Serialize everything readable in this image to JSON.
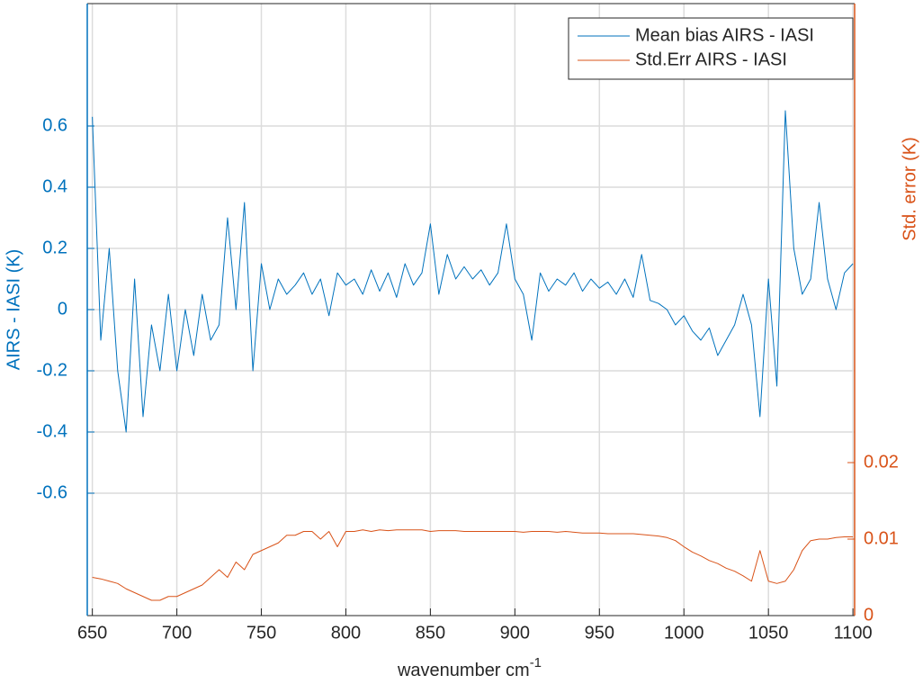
{
  "chart_data": {
    "type": "line",
    "xlabel": {
      "text": "wavenumber cm",
      "superscript": "-1"
    },
    "ylabel": "AIRS - IASI (K)",
    "y2label": "Std. error (K)",
    "x": [
      650,
      655,
      660,
      665,
      670,
      675,
      680,
      685,
      690,
      695,
      700,
      705,
      710,
      715,
      720,
      725,
      730,
      735,
      740,
      745,
      750,
      755,
      760,
      765,
      770,
      775,
      780,
      785,
      790,
      795,
      800,
      805,
      810,
      815,
      820,
      825,
      830,
      835,
      840,
      845,
      850,
      855,
      860,
      865,
      870,
      875,
      880,
      885,
      890,
      895,
      900,
      905,
      910,
      915,
      920,
      925,
      930,
      935,
      940,
      945,
      950,
      955,
      960,
      965,
      970,
      975,
      980,
      985,
      990,
      995,
      1000,
      1005,
      1010,
      1015,
      1020,
      1025,
      1030,
      1035,
      1040,
      1045,
      1050,
      1055,
      1060,
      1065,
      1070,
      1075,
      1080,
      1085,
      1090,
      1095,
      1100
    ],
    "series": [
      {
        "name": "Mean bias AIRS - IASI",
        "color": "#0072BD",
        "axis": "y",
        "values": [
          0.63,
          -0.1,
          0.2,
          -0.2,
          -0.4,
          0.1,
          -0.35,
          -0.05,
          -0.2,
          0.05,
          -0.2,
          0.0,
          -0.15,
          0.05,
          -0.1,
          -0.05,
          0.3,
          0.0,
          0.35,
          -0.2,
          0.15,
          0.0,
          0.1,
          0.05,
          0.08,
          0.12,
          0.05,
          0.1,
          -0.02,
          0.12,
          0.08,
          0.1,
          0.05,
          0.13,
          0.06,
          0.12,
          0.04,
          0.15,
          0.08,
          0.12,
          0.28,
          0.05,
          0.18,
          0.1,
          0.14,
          0.1,
          0.13,
          0.08,
          0.12,
          0.28,
          0.1,
          0.05,
          -0.1,
          0.12,
          0.06,
          0.1,
          0.08,
          0.12,
          0.06,
          0.1,
          0.07,
          0.09,
          0.05,
          0.1,
          0.04,
          0.18,
          0.03,
          0.02,
          0.0,
          -0.05,
          -0.02,
          -0.07,
          -0.1,
          -0.06,
          -0.15,
          -0.1,
          -0.05,
          0.05,
          -0.05,
          -0.35,
          0.1,
          -0.25,
          0.65,
          0.2,
          0.05,
          0.1,
          0.35,
          0.1,
          0.0,
          0.12,
          0.15
        ]
      },
      {
        "name": "Std.Err AIRS - IASI",
        "color": "#D95319",
        "axis": "y2",
        "values": [
          0.005,
          0.0048,
          0.0045,
          0.0042,
          0.0035,
          0.003,
          0.0025,
          0.002,
          0.002,
          0.0025,
          0.0025,
          0.003,
          0.0035,
          0.004,
          0.005,
          0.006,
          0.005,
          0.007,
          0.006,
          0.008,
          0.0085,
          0.009,
          0.0095,
          0.0105,
          0.0105,
          0.011,
          0.011,
          0.01,
          0.011,
          0.009,
          0.011,
          0.011,
          0.0112,
          0.011,
          0.0112,
          0.0111,
          0.0112,
          0.0112,
          0.0112,
          0.0112,
          0.011,
          0.0111,
          0.0111,
          0.0111,
          0.011,
          0.011,
          0.011,
          0.011,
          0.011,
          0.011,
          0.011,
          0.0109,
          0.011,
          0.011,
          0.011,
          0.0109,
          0.011,
          0.0109,
          0.0108,
          0.0108,
          0.0108,
          0.0107,
          0.0107,
          0.0107,
          0.0107,
          0.0106,
          0.0105,
          0.0104,
          0.0102,
          0.0098,
          0.009,
          0.0083,
          0.0078,
          0.0072,
          0.0068,
          0.0062,
          0.0058,
          0.0052,
          0.0045,
          0.0085,
          0.0045,
          0.0042,
          0.0045,
          0.006,
          0.0085,
          0.0098,
          0.01,
          0.01,
          0.0102,
          0.0103,
          0.0103
        ]
      }
    ],
    "xlim": [
      647,
      1101
    ],
    "xticks": [
      650,
      700,
      750,
      800,
      850,
      900,
      950,
      1000,
      1050,
      1100
    ],
    "ylim": [
      -1,
      1
    ],
    "yticks": [
      -0.6,
      -0.4,
      -0.2,
      0,
      0.2,
      0.4,
      0.6
    ],
    "y2lim": [
      0,
      0.08
    ],
    "y2ticks": [
      0,
      0.01,
      0.02
    ],
    "grid": true,
    "legend": "top-right"
  }
}
